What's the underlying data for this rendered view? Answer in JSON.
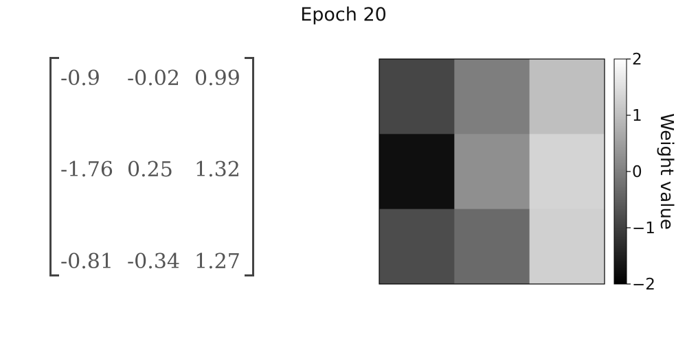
{
  "title": "Epoch 20",
  "matrix": {
    "rows": [
      [
        "-0.9",
        "-0.02",
        "0.99"
      ],
      [
        "-1.76",
        "0.25",
        "1.32"
      ],
      [
        "-0.81",
        "-0.34",
        "1.27"
      ]
    ]
  },
  "chart_data": {
    "type": "heatmap",
    "title": "Epoch 20",
    "values": [
      [
        -0.9,
        -0.02,
        0.99
      ],
      [
        -1.76,
        0.25,
        1.32
      ],
      [
        -0.81,
        -0.34,
        1.27
      ]
    ],
    "colormap": "gray",
    "vmin": -2,
    "vmax": 2,
    "colorbar": {
      "label": "Weight value",
      "ticks": [
        2,
        1,
        0,
        -1,
        -2
      ],
      "tick_labels": [
        "2",
        "1",
        "0",
        "−1",
        "−2"
      ]
    },
    "xlabel": "",
    "ylabel": "",
    "grid": false
  }
}
